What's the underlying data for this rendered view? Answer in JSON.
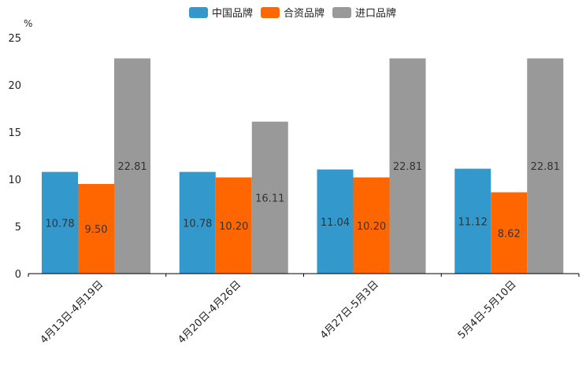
{
  "chart_data": {
    "type": "bar",
    "title": "",
    "xlabel": "",
    "ylabel": "%",
    "ylim": [
      0,
      25
    ],
    "yticks": [
      0,
      5,
      10,
      15,
      20,
      25
    ],
    "grid": false,
    "legend_position": "top-center",
    "categories": [
      "4月13日-4月19日",
      "4月20日-4月26日",
      "4月27日-5月3日",
      "5月4日-5月10日"
    ],
    "series": [
      {
        "name": "中国品牌",
        "color": "#3399cc",
        "values": [
          10.78,
          10.78,
          11.04,
          11.12
        ],
        "labels": [
          "10.78",
          "10.78",
          "11.04",
          "11.12"
        ]
      },
      {
        "name": "合资品牌",
        "color": "#ff6600",
        "values": [
          9.5,
          10.2,
          10.2,
          8.62
        ],
        "labels": [
          "9.50",
          "10.20",
          "10.20",
          "8.62"
        ]
      },
      {
        "name": "进口品牌",
        "color": "#999999",
        "values": [
          22.81,
          16.11,
          22.81,
          22.81
        ],
        "labels": [
          "22.81",
          "16.11",
          "22.81",
          "22.81"
        ]
      }
    ]
  }
}
